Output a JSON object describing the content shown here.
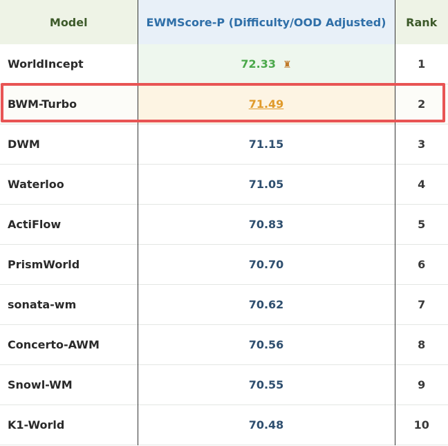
{
  "header": {
    "model": "Model",
    "score": "EWMScore-P (Difficulty/OOD Adjusted)",
    "rank": "Rank"
  },
  "rows": [
    {
      "model": "WorldIncept",
      "score": "72.33",
      "rank": "1",
      "icon": "trophy-icon"
    },
    {
      "model": "BWM-Turbo",
      "score": "71.49",
      "rank": "2"
    },
    {
      "model": "DWM",
      "score": "71.15",
      "rank": "3"
    },
    {
      "model": "Waterloo",
      "score": "71.05",
      "rank": "4"
    },
    {
      "model": "ActiFlow",
      "score": "70.83",
      "rank": "5"
    },
    {
      "model": "PrismWorld",
      "score": "70.70",
      "rank": "6"
    },
    {
      "model": "sonata-wm",
      "score": "70.62",
      "rank": "7"
    },
    {
      "model": "Concerto-AWM",
      "score": "70.56",
      "rank": "8"
    },
    {
      "model": "Snowl-WM",
      "score": "70.55",
      "rank": "9"
    },
    {
      "model": "K1-World",
      "score": "70.48",
      "rank": "10"
    }
  ],
  "colors": {
    "highlight": "#e85454",
    "first_score": "#4aa84a",
    "second_score": "#e09a2a",
    "score_text": "#2f4f6f"
  }
}
